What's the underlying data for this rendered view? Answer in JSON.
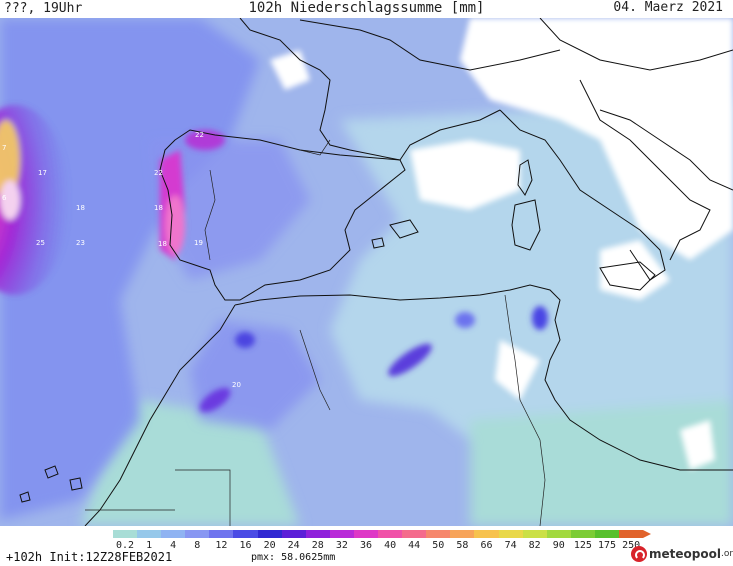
{
  "header": {
    "time_label": "???, 19Uhr",
    "title": "102h Niederschlagssumme [mm]",
    "date": "04. Maerz 2021"
  },
  "map": {
    "value_labels": [
      "7",
      "6",
      "17",
      "18",
      "25",
      "23",
      "22",
      "22",
      "18",
      "18",
      "19",
      "20"
    ]
  },
  "legend": {
    "ticks": [
      "0.2",
      "1",
      "4",
      "8",
      "12",
      "16",
      "20",
      "24",
      "28",
      "32",
      "36",
      "40",
      "44",
      "50",
      "58",
      "66",
      "74",
      "82",
      "90",
      "125",
      "175",
      "250"
    ],
    "colors": [
      "#a8ddd6",
      "#96c8ea",
      "#8fb3f2",
      "#8897f2",
      "#6f74ee",
      "#4a4be5",
      "#3128d2",
      "#5c1fd8",
      "#8f21db",
      "#b92bd8",
      "#de38c6",
      "#f051a8",
      "#f46b8c",
      "#f6876c",
      "#f7a45a",
      "#f7c24e",
      "#e9d849",
      "#cbe046",
      "#a2d93f",
      "#7ccc36",
      "#58c02d",
      "#e1632b"
    ]
  },
  "footer": {
    "init": "+102h Init:12Z28FEB2021",
    "pmx": "pmx: 58.0625mm",
    "brand": "meteopool",
    "brand_suffix": ".org"
  }
}
